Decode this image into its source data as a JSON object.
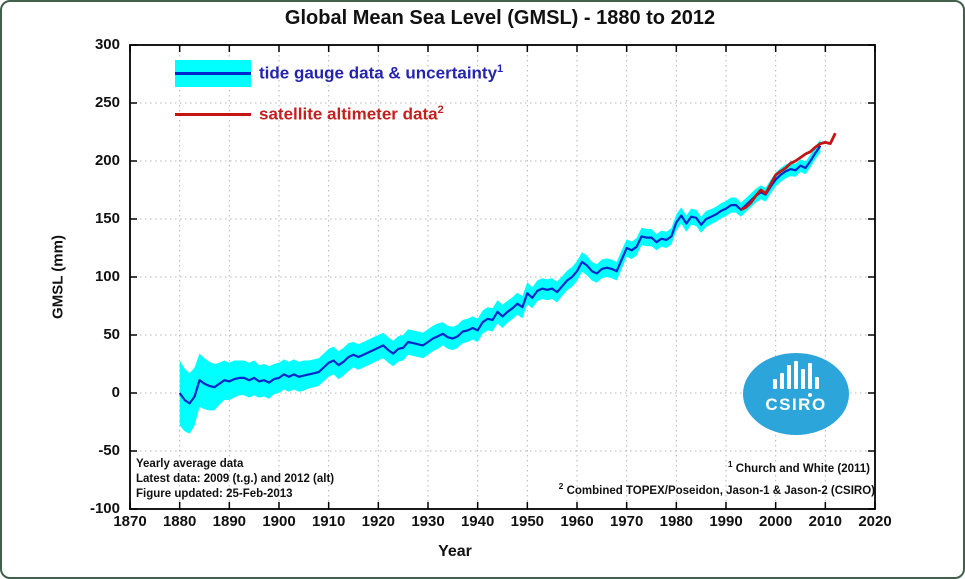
{
  "window": {
    "background": "#ffffff",
    "frame_border_color": "#41604d"
  },
  "chart_data": {
    "type": "line",
    "title": "Global Mean Sea Level (GMSL) - 1880 to 2012",
    "xlabel": "Year",
    "ylabel": "GMSL (mm)",
    "xlim": [
      1870,
      2020
    ],
    "ylim": [
      -100,
      300
    ],
    "x_ticks": [
      1870,
      1880,
      1890,
      1900,
      1910,
      1920,
      1930,
      1940,
      1950,
      1960,
      1970,
      1980,
      1990,
      2000,
      2010,
      2020
    ],
    "y_ticks": [
      -100,
      -50,
      0,
      50,
      100,
      150,
      200,
      250,
      300
    ],
    "grid": "dotted",
    "grid_color": "#b5b5b5",
    "axis_color": "#000000",
    "legend_position": "top-left",
    "series": [
      {
        "name": "tide gauge data & uncertainty",
        "superscript": "1",
        "color": "#0026cc",
        "band_color": "#00ffff",
        "start_year": 1880,
        "end_year": 2009,
        "values": [
          0,
          -6,
          -9,
          -3,
          11,
          8,
          6,
          5,
          8,
          11,
          10,
          12,
          13,
          13,
          11,
          13,
          10,
          11,
          9,
          12,
          13,
          16,
          14,
          16,
          14,
          15,
          16,
          17,
          18,
          22,
          26,
          28,
          24,
          27,
          31,
          33,
          31,
          33,
          35,
          37,
          39,
          41,
          37,
          34,
          38,
          39,
          44,
          43,
          42,
          41,
          44,
          47,
          49,
          51,
          48,
          47,
          49,
          53,
          54,
          56,
          54,
          61,
          64,
          63,
          70,
          66,
          70,
          73,
          77,
          74,
          86,
          82,
          88,
          90,
          89,
          90,
          87,
          92,
          97,
          100,
          105,
          113,
          110,
          105,
          103,
          107,
          108,
          107,
          105,
          115,
          125,
          123,
          126,
          135,
          134,
          134,
          130,
          133,
          132,
          135,
          147,
          153,
          146,
          152,
          151,
          145,
          150,
          152,
          154,
          157,
          159,
          162,
          162,
          158,
          162,
          166,
          170,
          173,
          171,
          178,
          184,
          188,
          191,
          193,
          192,
          196,
          194,
          200,
          207,
          213
        ],
        "uncertainty": [
          28,
          27,
          26,
          25,
          23,
          22,
          21,
          20,
          18,
          17,
          16,
          16,
          15,
          15,
          15,
          15,
          14,
          14,
          14,
          13,
          13,
          13,
          13,
          13,
          13,
          13,
          12,
          12,
          12,
          12,
          12,
          12,
          12,
          12,
          12,
          11,
          11,
          11,
          11,
          11,
          11,
          11,
          11,
          11,
          11,
          11,
          11,
          11,
          11,
          11,
          11,
          11,
          11,
          10,
          10,
          10,
          10,
          10,
          10,
          10,
          10,
          10,
          10,
          10,
          10,
          10,
          9.5,
          9.5,
          9.5,
          9.5,
          9.5,
          9,
          9,
          9,
          9,
          9,
          9,
          8.5,
          8.5,
          8.5,
          8.5,
          8.5,
          8.5,
          8,
          8,
          8,
          8,
          8,
          8,
          8,
          7.5,
          7.5,
          7.5,
          7.5,
          7.5,
          7.5,
          7,
          7,
          7,
          7,
          7,
          7,
          7,
          7,
          7,
          7,
          7,
          6.5,
          6.5,
          6.5,
          6.5,
          6.5,
          6.5,
          6,
          6,
          6,
          6,
          6,
          6,
          6,
          6,
          6,
          6,
          6,
          5.5,
          5.5,
          5.5,
          5.5,
          5.5,
          5.5
        ]
      },
      {
        "name": "satellite altimeter data",
        "superscript": "2",
        "color": "#c41414",
        "start_year": 1993,
        "end_year": 2012,
        "values": [
          158,
          160,
          164,
          170,
          175,
          172,
          180,
          188,
          191,
          194,
          198,
          200,
          203,
          206,
          208,
          212,
          215,
          216,
          215,
          224
        ]
      }
    ]
  },
  "annotations": {
    "left_block": {
      "line1": "Yearly average data",
      "line2": "Latest data: 2009 (t.g.) and 2012 (alt)",
      "line3": "Figure updated: 25-Feb-2013"
    },
    "footnote1_sup": "1",
    "footnote1_text": " Church and White (2011)",
    "footnote2_sup": "2",
    "footnote2_text": " Combined TOPEX/Poseidon, Jason-1 & Jason-2 (CSIRO)"
  },
  "logo": {
    "text": "CSIRO",
    "color": "#2ca5da"
  }
}
